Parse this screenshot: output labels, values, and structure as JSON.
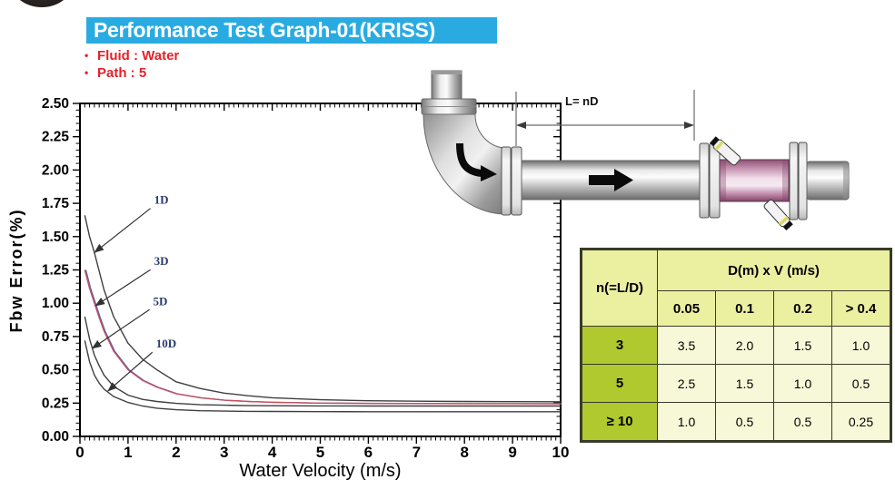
{
  "header": {
    "title": "Performance Test Graph-01(KRISS)",
    "title_bg": "#29ABE2",
    "title_color": "#ffffff",
    "bullet_color": "#E62129",
    "bullets": [
      {
        "label": "Fluid : Water"
      },
      {
        "label": "Path : 5"
      }
    ]
  },
  "chart_data": {
    "type": "line",
    "xlabel": "Water Velocity (m/s)",
    "ylabel": "Fbw Error(%)",
    "xlim": [
      0,
      10
    ],
    "ylim": [
      0,
      2.5
    ],
    "grid": false,
    "legend_position": "none",
    "frame_color": "#000000",
    "x_major_ticks": [
      "0",
      "1",
      "2",
      "3",
      "4",
      "5",
      "6",
      "7",
      "8",
      "9",
      "10"
    ],
    "y_major_ticks": [
      "0.00",
      "0.25",
      "0.50",
      "0.75",
      "1.00",
      "1.25",
      "1.50",
      "1.75",
      "2.00",
      "2.25",
      "2.50"
    ],
    "x_minor_step": 0.1,
    "y_minor_step": 0.05,
    "annotation_color": "#2B3A6B",
    "series": [
      {
        "name": "1D",
        "color": "#3f3f3f",
        "x": [
          0.1,
          0.2,
          0.3,
          0.4,
          0.5,
          0.7,
          1.0,
          1.3,
          1.6,
          2.0,
          2.5,
          3.0,
          3.5,
          4.0,
          5.0,
          6.0,
          7.0,
          8.0,
          9.0,
          10.0
        ],
        "y": [
          1.66,
          1.5,
          1.38,
          1.24,
          1.1,
          0.9,
          0.7,
          0.58,
          0.5,
          0.41,
          0.36,
          0.325,
          0.305,
          0.29,
          0.275,
          0.268,
          0.264,
          0.262,
          0.261,
          0.26
        ]
      },
      {
        "name": "3D",
        "color": "#C5515E",
        "color2": "#5A5FA8",
        "x": [
          0.1,
          0.2,
          0.3,
          0.4,
          0.5,
          0.7,
          1.0,
          1.3,
          1.6,
          2.0,
          2.5,
          3.0,
          3.5,
          4.0,
          5.0,
          6.0,
          7.0,
          8.0,
          9.0,
          10.0
        ],
        "y": [
          1.25,
          1.11,
          1.0,
          0.89,
          0.79,
          0.64,
          0.5,
          0.42,
          0.37,
          0.32,
          0.29,
          0.272,
          0.262,
          0.256,
          0.25,
          0.248,
          0.247,
          0.246,
          0.246,
          0.245
        ]
      },
      {
        "name": "5D",
        "color": "#3f3f3f",
        "x": [
          0.1,
          0.2,
          0.3,
          0.4,
          0.5,
          0.7,
          1.0,
          1.3,
          1.6,
          2.0,
          2.5,
          3.0,
          3.5,
          4.0,
          5.0,
          6.0,
          7.0,
          8.0,
          9.0,
          10.0
        ],
        "y": [
          0.9,
          0.73,
          0.61,
          0.53,
          0.46,
          0.375,
          0.31,
          0.278,
          0.262,
          0.248,
          0.238,
          0.234,
          0.231,
          0.23,
          0.229,
          0.228,
          0.228,
          0.228,
          0.228,
          0.228
        ]
      },
      {
        "name": "10D",
        "color": "#3f3f3f",
        "x": [
          0.1,
          0.2,
          0.3,
          0.4,
          0.5,
          0.7,
          1.0,
          1.3,
          1.6,
          2.0,
          2.5,
          3.0,
          3.5,
          4.0,
          5.0,
          6.0,
          7.0,
          8.0,
          9.0,
          10.0
        ],
        "y": [
          0.72,
          0.56,
          0.46,
          0.4,
          0.355,
          0.3,
          0.255,
          0.228,
          0.212,
          0.2,
          0.193,
          0.19,
          0.188,
          0.187,
          0.186,
          0.185,
          0.185,
          0.185,
          0.185,
          0.185
        ]
      }
    ],
    "annotations": [
      {
        "label": "1D",
        "label_x": 1.58,
        "label_y": 1.78,
        "tip_x": 0.3,
        "tip_y": 1.38
      },
      {
        "label": "3D",
        "label_x": 1.58,
        "label_y": 1.32,
        "tip_x": 0.32,
        "tip_y": 0.98
      },
      {
        "label": "5D",
        "label_x": 1.56,
        "label_y": 1.02,
        "tip_x": 0.25,
        "tip_y": 0.66
      },
      {
        "label": "10D",
        "label_x": 1.62,
        "label_y": 0.7,
        "tip_x": 0.58,
        "tip_y": 0.34
      }
    ]
  },
  "diagram": {
    "dim_label": "L= nD",
    "meter_color": "#c795b2",
    "pipe_color": "#b5b5b5"
  },
  "table": {
    "corner_header": "n(=L/D)",
    "span_header": "D(m) x V (m/s)",
    "col_headers": [
      "0.05",
      "0.1",
      "0.2",
      "> 0.4"
    ],
    "rows": [
      {
        "header": "3",
        "cells": [
          "3.5",
          "2.0",
          "1.5",
          "1.0"
        ]
      },
      {
        "header": "5",
        "cells": [
          "2.5",
          "1.5",
          "1.0",
          "0.5"
        ]
      },
      {
        "header": "≥ 10",
        "cells": [
          "1.0",
          "0.5",
          "0.5",
          "0.25"
        ]
      }
    ],
    "colors": {
      "header_bg": "#EBEFA0",
      "row_header_bg": "#AFC92F",
      "cell_bg": "#F6F8D8",
      "border": "#3a3a2a"
    }
  }
}
